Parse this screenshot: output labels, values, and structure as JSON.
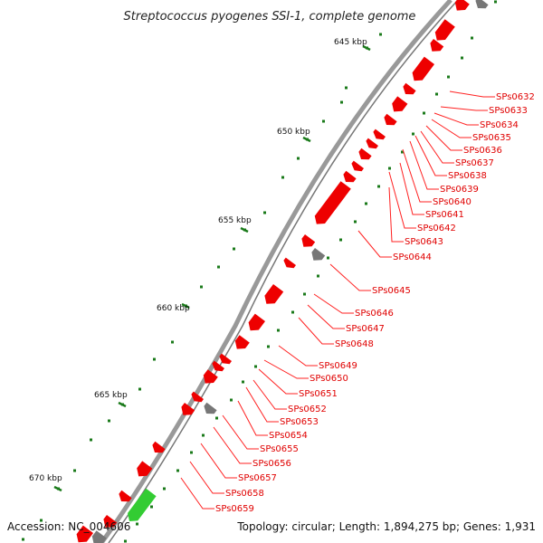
{
  "title": "Streptococcus pyogenes SSI-1, complete genome",
  "accession": "Accession: NC_004606",
  "topology": "Topology: circular; Length: 1,894,275 bp; Genes: 1,931",
  "scale_labels": [
    "645 kbp",
    "650 kbp",
    "655 kbp",
    "660 kbp",
    "665 kbp",
    "670 kbp"
  ],
  "gene_labels": [
    "SPs0632",
    "SPs0633",
    "SPs0634",
    "SPs0635",
    "SPs0636",
    "SPs0637",
    "SPs0638",
    "SPs0639",
    "SPs0640",
    "SPs0641",
    "SPs0642",
    "SPs0643",
    "SPs0644",
    "SPs0645",
    "SPs0646",
    "SPs0647",
    "SPs0648",
    "SPs0649",
    "SPs0650",
    "SPs0651",
    "SPs0652",
    "SPs0653",
    "SPs0654",
    "SPs0655",
    "SPs0656",
    "SPs0657",
    "SPs0658",
    "SPs0659"
  ],
  "colors": {
    "cds": "#ee0000",
    "other": "#777777",
    "rna": "#33cc33",
    "backbone": "#999999",
    "tick": "#1a7a1a",
    "label": "#e00000"
  }
}
